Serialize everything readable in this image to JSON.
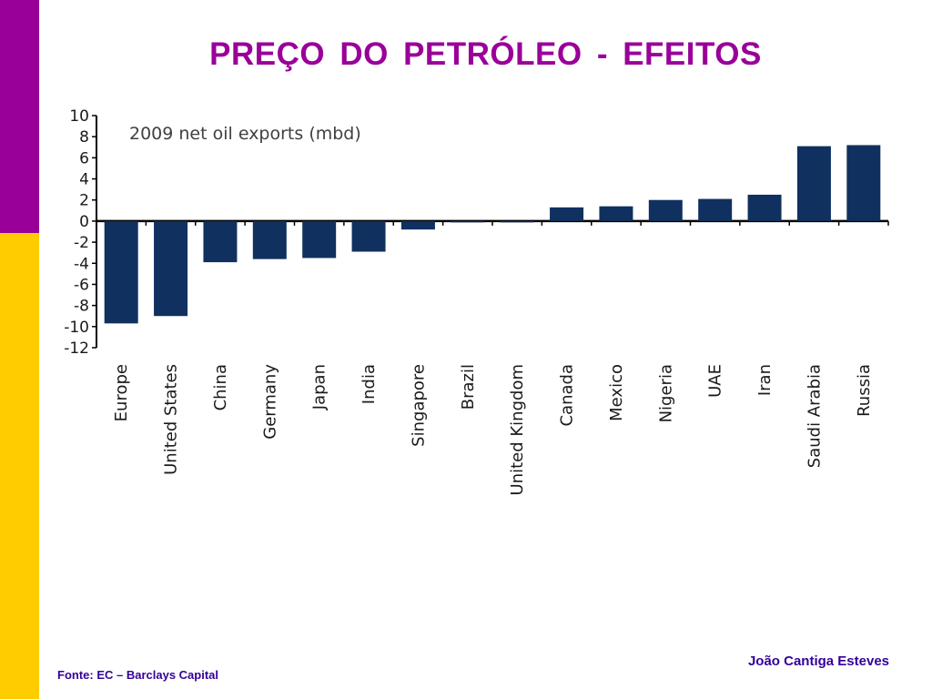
{
  "colors": {
    "accent_purple": "#990099",
    "accent_yellow": "#ffcc00",
    "title_color": "#990099",
    "footer_text": "#330099",
    "bar_color": "#10305f"
  },
  "slide": {
    "title": "PREÇO  DO  PETRÓLEO - EFEITOS",
    "author": "João Cantiga Esteves",
    "source": "Fonte: EC – Barclays Capital"
  },
  "chart_data": {
    "type": "bar",
    "title": "2009 net oil exports (mbd)",
    "xlabel": "",
    "ylabel": "",
    "ylim": [
      -12,
      10
    ],
    "yticks": [
      10,
      8,
      6,
      4,
      2,
      0,
      -2,
      -4,
      -6,
      -8,
      -10,
      -12
    ],
    "grid": false,
    "categories": [
      "Europe",
      "United States",
      "China",
      "Germany",
      "Japan",
      "India",
      "Singapore",
      "Brazil",
      "United Kingdom",
      "Canada",
      "Mexico",
      "Nigeria",
      "UAE",
      "Iran",
      "Saudi Arabia",
      "Russia"
    ],
    "values": [
      -9.7,
      -9.0,
      -3.9,
      -3.6,
      -3.5,
      -2.9,
      -0.8,
      -0.1,
      -0.1,
      1.3,
      1.4,
      2.0,
      2.1,
      2.5,
      7.1,
      7.2
    ]
  }
}
